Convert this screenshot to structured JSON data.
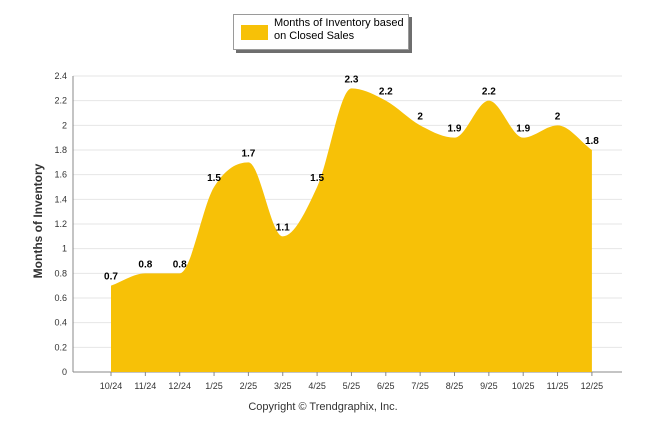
{
  "legend": {
    "label": "Months of Inventory based on Closed Sales"
  },
  "copyright": "Copyright © Trendgraphix, Inc.",
  "colors": {
    "series": "#F7C107",
    "grid": "#e6e6e6",
    "axis": "#888888"
  },
  "chart_data": {
    "type": "area",
    "title": "",
    "xlabel": "",
    "ylabel": "Months of Inventory",
    "categories": [
      "10/24",
      "11/24",
      "12/24",
      "1/25",
      "2/25",
      "3/25",
      "4/25",
      "5/25",
      "6/25",
      "7/25",
      "8/25",
      "9/25",
      "10/25",
      "11/25",
      "12/25"
    ],
    "series": [
      {
        "name": "Months of Inventory based on Closed Sales",
        "values": [
          0.7,
          0.8,
          0.8,
          1.5,
          1.7,
          1.1,
          1.5,
          2.3,
          2.2,
          2,
          1.9,
          2.2,
          1.9,
          2,
          1.8
        ]
      }
    ],
    "data_labels": [
      "0.7",
      "0.8",
      "0.8",
      "1.5",
      "1.7",
      "1.1",
      "1.5",
      "2.3",
      "2.2",
      "2",
      "1.9",
      "2.2",
      "1.9",
      "2",
      "1.8"
    ],
    "ylim": [
      0,
      2.4
    ],
    "yticks": [
      "0",
      "0.2",
      "0.4",
      "0.6",
      "0.8",
      "1",
      "1.2",
      "1.4",
      "1.6",
      "1.8",
      "2",
      "2.2",
      "2.4"
    ],
    "grid": true,
    "legend_position": "top-center"
  }
}
